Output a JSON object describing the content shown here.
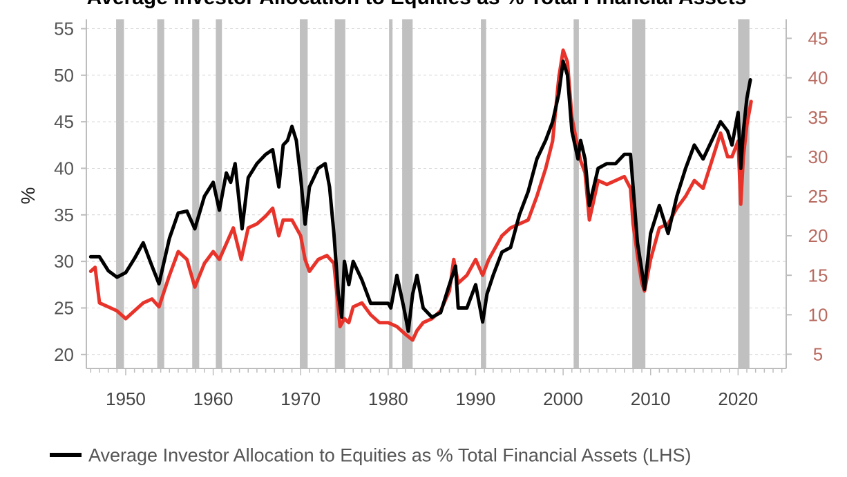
{
  "chart_data": {
    "type": "line",
    "title": "Average Investor Allocation to Equities as % Total Financial Assets",
    "ylabel": "%",
    "xlim": [
      1945.5,
      2025.5
    ],
    "x_ticks": [
      1950,
      1960,
      1970,
      1980,
      1990,
      2000,
      2010,
      2020
    ],
    "y_left": {
      "lim": [
        18.5,
        56
      ],
      "ticks": [
        20,
        25,
        30,
        35,
        40,
        45,
        50,
        55
      ]
    },
    "y_right": {
      "lim": [
        3.2,
        47.4
      ],
      "ticks": [
        5,
        10,
        15,
        20,
        25,
        30,
        35,
        40,
        45
      ],
      "color": "#b86a60"
    },
    "grid": "horizontal dashed",
    "recession_bands": [
      [
        1948.9,
        1949.8
      ],
      [
        1953.6,
        1954.4
      ],
      [
        1957.6,
        1958.4
      ],
      [
        1960.3,
        1961.0
      ],
      [
        1969.9,
        1970.8
      ],
      [
        1973.9,
        1975.1
      ],
      [
        1980.1,
        1980.5
      ],
      [
        1981.6,
        1982.8
      ],
      [
        1990.6,
        1991.2
      ],
      [
        2001.2,
        2001.8
      ],
      [
        2007.9,
        2009.4
      ],
      [
        2020.0,
        2021.3
      ]
    ],
    "band_color": "#c0c0c0",
    "series": [
      {
        "name": "Average Investor Allocation to Equities as % Total Financial Assets (LHS)",
        "axis": "left",
        "color": "#000000",
        "x": [
          1946.0,
          1947.0,
          1948.0,
          1949.0,
          1950.0,
          1951.0,
          1952.0,
          1953.0,
          1953.8,
          1955.0,
          1956.0,
          1957.0,
          1957.9,
          1959.0,
          1960.0,
          1960.7,
          1961.5,
          1962.0,
          1962.5,
          1963.3,
          1964.0,
          1965.0,
          1966.0,
          1966.8,
          1967.5,
          1968.0,
          1968.5,
          1969.0,
          1969.5,
          1970.0,
          1970.5,
          1971.0,
          1972.0,
          1972.8,
          1973.3,
          1973.8,
          1974.3,
          1974.7,
          1975.0,
          1975.5,
          1976.0,
          1977.0,
          1978.0,
          1979.0,
          1980.0,
          1980.3,
          1981.0,
          1981.8,
          1982.3,
          1982.8,
          1983.3,
          1984.0,
          1985.0,
          1986.0,
          1987.0,
          1987.7,
          1988.0,
          1989.0,
          1990.0,
          1990.8,
          1991.3,
          1992.0,
          1993.0,
          1994.0,
          1995.0,
          1996.0,
          1997.0,
          1998.0,
          1998.8,
          1999.5,
          2000.0,
          2000.5,
          2001.0,
          2001.7,
          2002.0,
          2002.5,
          2003.0,
          2004.0,
          2005.0,
          2006.0,
          2007.0,
          2007.7,
          2008.0,
          2008.5,
          2009.0,
          2009.3,
          2010.0,
          2011.0,
          2012.0,
          2013.0,
          2014.0,
          2015.0,
          2016.0,
          2017.0,
          2018.0,
          2018.8,
          2019.3,
          2020.0,
          2020.3,
          2020.6,
          2021.0,
          2021.4
        ],
        "y": [
          30.5,
          30.5,
          29.0,
          28.3,
          28.8,
          30.3,
          32.0,
          29.5,
          27.6,
          32.5,
          35.2,
          35.4,
          33.5,
          37.0,
          38.5,
          35.5,
          39.5,
          38.5,
          40.5,
          33.5,
          39.0,
          40.5,
          41.5,
          42.0,
          38.0,
          42.5,
          43.0,
          44.5,
          43.0,
          39.0,
          34.0,
          38.0,
          40.0,
          40.5,
          38.0,
          33.0,
          26.5,
          24.0,
          30.0,
          27.5,
          30.0,
          28.0,
          25.5,
          25.5,
          25.5,
          25.0,
          28.5,
          25.0,
          22.5,
          26.5,
          28.5,
          25.0,
          24.0,
          24.5,
          27.5,
          29.5,
          25.0,
          25.0,
          27.5,
          23.5,
          26.5,
          28.5,
          31.0,
          31.5,
          35.0,
          37.5,
          41.0,
          43.0,
          45.0,
          48.0,
          51.5,
          50.0,
          44.0,
          41.0,
          43.0,
          41.0,
          36.0,
          40.0,
          40.5,
          40.5,
          41.5,
          41.5,
          38.0,
          32.0,
          29.0,
          27.0,
          33.0,
          36.0,
          33.0,
          37.0,
          40.0,
          42.5,
          41.0,
          43.0,
          45.0,
          44.0,
          42.5,
          46.0,
          40.0,
          44.0,
          47.5,
          49.5
        ]
      },
      {
        "axis": "right",
        "color": "#e8332a",
        "x": [
          1946.0,
          1946.5,
          1947.0,
          1948.0,
          1949.0,
          1950.0,
          1951.0,
          1952.0,
          1953.0,
          1953.8,
          1955.0,
          1956.0,
          1957.0,
          1957.9,
          1959.0,
          1960.0,
          1960.7,
          1961.5,
          1962.3,
          1963.2,
          1964.0,
          1965.0,
          1966.0,
          1966.8,
          1967.5,
          1968.0,
          1969.0,
          1970.0,
          1970.5,
          1971.0,
          1972.0,
          1973.0,
          1973.8,
          1974.5,
          1975.0,
          1975.5,
          1976.0,
          1977.0,
          1978.0,
          1979.0,
          1980.0,
          1981.0,
          1982.0,
          1982.8,
          1983.3,
          1984.0,
          1985.0,
          1986.0,
          1987.0,
          1987.5,
          1988.0,
          1989.0,
          1990.0,
          1990.8,
          1991.5,
          1992.0,
          1993.0,
          1994.0,
          1995.0,
          1996.0,
          1997.0,
          1998.0,
          1998.8,
          1999.5,
          2000.0,
          2000.5,
          2001.0,
          2001.7,
          2002.0,
          2002.5,
          2003.0,
          2004.0,
          2005.0,
          2006.0,
          2007.0,
          2007.7,
          2008.0,
          2008.5,
          2009.0,
          2009.3,
          2010.0,
          2011.0,
          2012.0,
          2013.0,
          2014.0,
          2015.0,
          2016.0,
          2017.0,
          2018.0,
          2018.8,
          2019.3,
          2020.0,
          2020.3,
          2020.6,
          2021.0,
          2021.5
        ],
        "y": [
          15.5,
          16.0,
          11.5,
          11.0,
          10.5,
          9.5,
          10.5,
          11.5,
          12.0,
          11.0,
          15.0,
          18.0,
          17.0,
          13.5,
          16.5,
          18.0,
          17.0,
          19.0,
          21.0,
          17.0,
          21.0,
          21.5,
          22.5,
          23.5,
          20.0,
          22.0,
          22.0,
          20.0,
          17.0,
          15.5,
          17.0,
          17.5,
          16.5,
          8.5,
          9.5,
          9.0,
          11.0,
          11.5,
          10.0,
          9.0,
          9.0,
          8.5,
          7.5,
          6.8,
          8.0,
          9.0,
          9.5,
          10.5,
          13.0,
          17.0,
          14.0,
          15.0,
          17.0,
          15.0,
          17.0,
          18.0,
          20.0,
          21.0,
          21.5,
          22.0,
          25.0,
          28.5,
          32.0,
          40.0,
          43.5,
          42.0,
          35.0,
          31.0,
          29.5,
          28.0,
          22.0,
          27.0,
          26.5,
          27.0,
          27.5,
          26.0,
          21.5,
          17.5,
          14.0,
          13.0,
          17.0,
          21.0,
          21.5,
          23.5,
          25.0,
          27.0,
          26.0,
          29.5,
          33.0,
          30.0,
          30.0,
          32.0,
          24.0,
          30.0,
          34.0,
          37.0
        ]
      }
    ],
    "legend": {
      "placement": "bottom",
      "entries": [
        "Average Investor Allocation to Equities as % Total Financial Assets (LHS)"
      ]
    }
  }
}
